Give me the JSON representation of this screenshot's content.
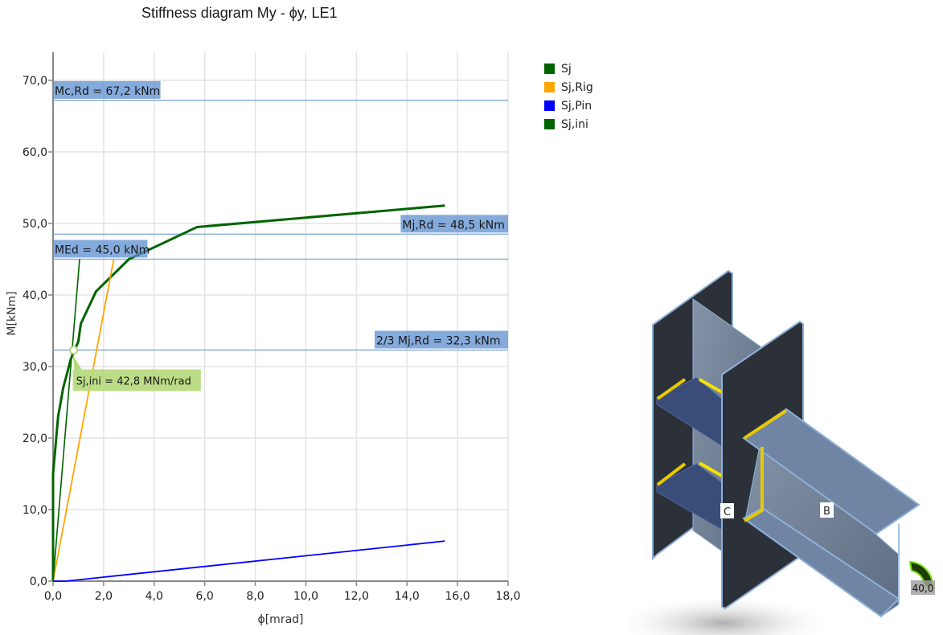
{
  "chart_data": {
    "type": "line",
    "title": "Stiffness diagram My - ϕy, LE1",
    "xlabel": "ϕ[mrad]",
    "ylabel": "M[kNm]",
    "xlim": [
      0,
      18
    ],
    "ylim": [
      0,
      74
    ],
    "grid": true,
    "legend_position": "right-top",
    "x_ticks": [
      "0,0",
      "2,0",
      "4,0",
      "6,0",
      "8,0",
      "10,0",
      "12,0",
      "14,0",
      "16,0",
      "18,0"
    ],
    "y_ticks": [
      "0,0",
      "10,0",
      "20,0",
      "30,0",
      "40,0",
      "50,0",
      "60,0",
      "70,0"
    ],
    "series": [
      {
        "name": "Sj",
        "color": "#006400",
        "points": [
          [
            0,
            0
          ],
          [
            0,
            15
          ],
          [
            0.1,
            19
          ],
          [
            0.2,
            23
          ],
          [
            0.4,
            27
          ],
          [
            0.7,
            31
          ],
          [
            1.0,
            33.5
          ],
          [
            1.1,
            36
          ],
          [
            1.7,
            40.5
          ],
          [
            3.0,
            45
          ],
          [
            5.7,
            49.5
          ],
          [
            15.5,
            52.5
          ]
        ]
      },
      {
        "name": "Sj,Rig",
        "color": "#FFA500",
        "points": [
          [
            0,
            0
          ],
          [
            2.4,
            45
          ]
        ]
      },
      {
        "name": "Sj,Pin",
        "color": "#0000FF",
        "points": [
          [
            0,
            0
          ],
          [
            0.5,
            0
          ],
          [
            15.5,
            5.6
          ]
        ]
      },
      {
        "name": "Sj,ini",
        "color": "#006400",
        "points": [
          [
            0,
            0
          ],
          [
            1.05,
            45
          ]
        ]
      }
    ],
    "annotations": [
      {
        "label": "Mc,Rd = 67,2 kNm",
        "y": 67.2,
        "align": "left"
      },
      {
        "label": "Mj,Rd = 48,5 kNm",
        "y": 48.5,
        "align": "right"
      },
      {
        "label": "MEd = 45,0 kNm",
        "y": 45.0,
        "align": "left"
      },
      {
        "label": "2/3 Mj,Rd = 32,3 kNm",
        "y": 32.3,
        "align": "right"
      }
    ],
    "callout": {
      "label": "Sj,ini = 42,8 MNm/rad",
      "x": 0.75,
      "y": 32.3
    }
  },
  "legend": {
    "items": [
      {
        "label": "Sj",
        "color": "#006400"
      },
      {
        "label": "Sj,Rig",
        "color": "#FFA500"
      },
      {
        "label": "Sj,Pin",
        "color": "#0000FF"
      },
      {
        "label": "Sj,ini",
        "color": "#006400"
      }
    ]
  },
  "model": {
    "column_label": "C",
    "beam_label": "B",
    "moment_value": "40,0"
  }
}
